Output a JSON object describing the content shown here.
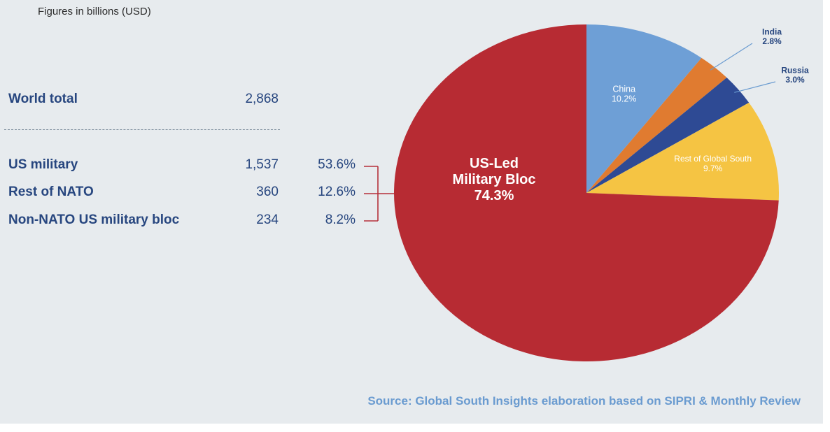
{
  "subtitle": "Figures in billions (USD)",
  "table": {
    "world": {
      "label": "World total",
      "value": "2,868"
    },
    "rows": [
      {
        "label": "US military",
        "value": "1,537",
        "pct": "53.6%"
      },
      {
        "label": "Rest of NATO",
        "value": "360",
        "pct": "12.6%"
      },
      {
        "label": "Non-NATO US military bloc",
        "value": "234",
        "pct": "8.2%"
      }
    ]
  },
  "source": "Source: Global South Insights elaboration based on SIPRI & Monthly Review",
  "colors": {
    "text": "#27467f",
    "bracket": "#b5303a",
    "background": "#e7ebee",
    "source": "#6a9bd0"
  },
  "chart_data": {
    "type": "pie",
    "title": "",
    "start_angle_deg": 0,
    "direction": "clockwise",
    "slices": [
      {
        "name": "China",
        "label": "China",
        "pct_label": "10.2%",
        "value": 10.2,
        "color": "#6e9fd6"
      },
      {
        "name": "India",
        "label": "India",
        "pct_label": "2.8%",
        "value": 2.8,
        "color": "#e07b30"
      },
      {
        "name": "Russia",
        "label": "Russia",
        "pct_label": "3.0%",
        "value": 3.0,
        "color": "#2e4a94"
      },
      {
        "name": "Rest of Global South",
        "label": "Rest of Global South",
        "pct_label": "9.7%",
        "value": 9.7,
        "color": "#f5c443"
      },
      {
        "name": "US-Led Military Bloc",
        "label": "US-Led\nMilitary Bloc",
        "pct_label": "74.3%",
        "value": 74.3,
        "color": "#b72b33"
      }
    ]
  }
}
